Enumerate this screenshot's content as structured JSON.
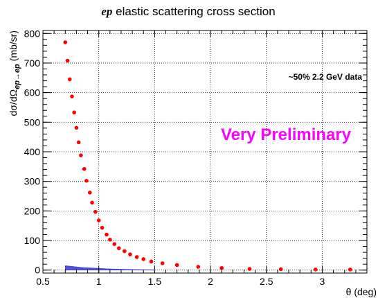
{
  "chart_data": {
    "type": "scatter",
    "title_prefix": "ep",
    "title_rest": " elastic scattering cross section",
    "xlabel": "θ (deg)",
    "ylabel_main": "dσ/dΩ",
    "ylabel_sub": "ep→ep",
    "ylabel_unit": " (mb/sr)",
    "xlim": [
      0.5,
      3.4
    ],
    "ylim": [
      -10,
      810
    ],
    "grid": true,
    "x_ticks": [
      0.5,
      1,
      1.5,
      2,
      2.5,
      3
    ],
    "x_tick_labels": [
      "0.5",
      "1",
      "1.5",
      "2",
      "2.5",
      "3"
    ],
    "y_ticks": [
      0,
      100,
      200,
      300,
      400,
      500,
      600,
      700,
      800
    ],
    "y_tick_labels": [
      "0",
      "100",
      "200",
      "300",
      "400",
      "500",
      "600",
      "700",
      "800"
    ],
    "annotations": {
      "data_note": "~50% 2.2 GeV data",
      "watermark": "Very Preliminary"
    },
    "colors": {
      "points": "#ff0000",
      "band": "#3333cc",
      "watermark": "#ff00ff"
    },
    "series": [
      {
        "type": "scatter",
        "x": [
          0.7,
          0.72,
          0.74,
          0.76,
          0.78,
          0.8,
          0.82,
          0.84,
          0.87,
          0.89,
          0.92,
          0.94,
          0.97,
          1.0,
          1.03,
          1.07,
          1.1,
          1.14,
          1.18,
          1.23,
          1.28,
          1.34,
          1.4,
          1.47,
          1.57,
          1.7,
          1.89,
          2.1,
          2.35,
          2.63,
          2.94,
          3.25
        ],
        "values": [
          770,
          708,
          645,
          587,
          533,
          481,
          432,
          388,
          342,
          302,
          262,
          228,
          197,
          168,
          143,
          120,
          103,
          88,
          74,
          64,
          53,
          44,
          37,
          29,
          23,
          17,
          11,
          7,
          4,
          3,
          2,
          2
        ]
      },
      {
        "type": "band",
        "x": [
          0.7,
          0.75,
          0.8,
          0.85,
          0.9,
          0.95,
          1.0,
          1.05,
          1.1,
          1.15,
          1.2,
          1.3,
          1.4,
          1.5
        ],
        "upper": [
          15,
          13,
          11,
          9,
          8,
          7,
          6,
          5,
          4,
          3.5,
          3,
          2,
          1.5,
          1
        ],
        "lower": [
          0,
          0,
          0,
          0,
          0,
          0,
          0,
          0,
          0,
          0,
          0,
          0,
          0,
          0
        ]
      }
    ]
  }
}
